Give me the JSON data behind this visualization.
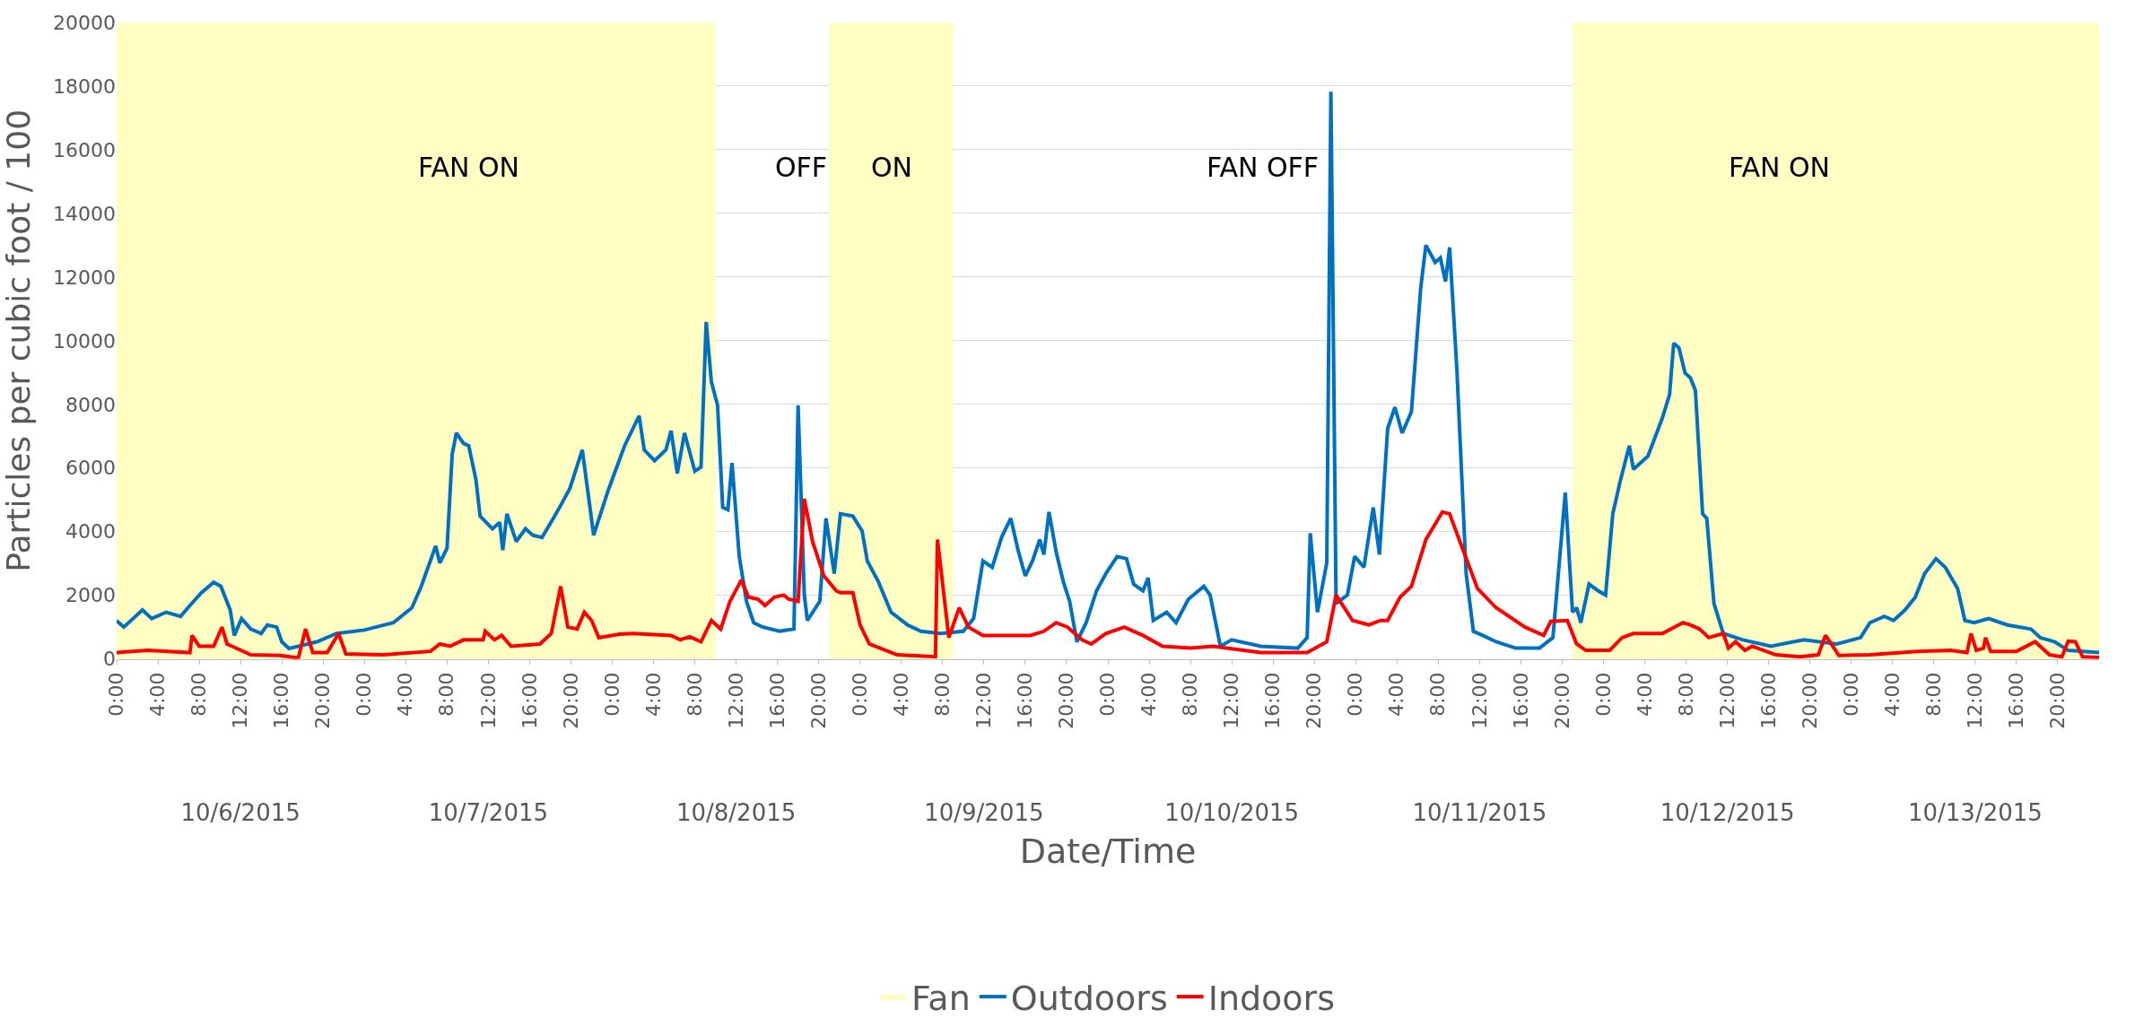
{
  "chart_data": {
    "type": "line",
    "xlabel": "Date/Time",
    "ylabel": "Particles per cubic foot / 100",
    "xlim": [
      "2015-10-06T00:00",
      "2015-10-14T00:00"
    ],
    "xticks": [
      {
        "value": "2015-10-06T00:00",
        "label": "0:00"
      },
      {
        "value": "2015-10-06T04:00",
        "label": "4:00"
      },
      {
        "value": "2015-10-06T08:00",
        "label": "8:00"
      },
      {
        "value": "2015-10-06T12:00",
        "label": "12:00"
      },
      {
        "value": "2015-10-06T16:00",
        "label": "16:00"
      },
      {
        "value": "2015-10-06T20:00",
        "label": "20:00"
      },
      {
        "value": "2015-10-07T00:00",
        "label": "0:00"
      },
      {
        "value": "2015-10-07T04:00",
        "label": "4:00"
      },
      {
        "value": "2015-10-07T08:00",
        "label": "8:00"
      },
      {
        "value": "2015-10-07T12:00",
        "label": "12:00"
      },
      {
        "value": "2015-10-07T16:00",
        "label": "16:00"
      },
      {
        "value": "2015-10-07T20:00",
        "label": "20:00"
      },
      {
        "value": "2015-10-08T00:00",
        "label": "0:00"
      },
      {
        "value": "2015-10-08T04:00",
        "label": "4:00"
      },
      {
        "value": "2015-10-08T08:00",
        "label": "8:00"
      },
      {
        "value": "2015-10-08T12:00",
        "label": "12:00"
      },
      {
        "value": "2015-10-08T16:00",
        "label": "16:00"
      },
      {
        "value": "2015-10-08T20:00",
        "label": "20:00"
      },
      {
        "value": "2015-10-09T00:00",
        "label": "0:00"
      },
      {
        "value": "2015-10-09T04:00",
        "label": "4:00"
      },
      {
        "value": "2015-10-09T08:00",
        "label": "8:00"
      },
      {
        "value": "2015-10-09T12:00",
        "label": "12:00"
      },
      {
        "value": "2015-10-09T16:00",
        "label": "16:00"
      },
      {
        "value": "2015-10-09T20:00",
        "label": "20:00"
      },
      {
        "value": "2015-10-10T00:00",
        "label": "0:00"
      },
      {
        "value": "2015-10-10T04:00",
        "label": "4:00"
      },
      {
        "value": "2015-10-10T08:00",
        "label": "8:00"
      },
      {
        "value": "2015-10-10T12:00",
        "label": "12:00"
      },
      {
        "value": "2015-10-10T16:00",
        "label": "16:00"
      },
      {
        "value": "2015-10-10T20:00",
        "label": "20:00"
      },
      {
        "value": "2015-10-11T00:00",
        "label": "0:00"
      },
      {
        "value": "2015-10-11T04:00",
        "label": "4:00"
      },
      {
        "value": "2015-10-11T08:00",
        "label": "8:00"
      },
      {
        "value": "2015-10-11T12:00",
        "label": "12:00"
      },
      {
        "value": "2015-10-11T16:00",
        "label": "16:00"
      },
      {
        "value": "2015-10-11T20:00",
        "label": "20:00"
      },
      {
        "value": "2015-10-12T00:00",
        "label": "0:00"
      },
      {
        "value": "2015-10-12T04:00",
        "label": "4:00"
      },
      {
        "value": "2015-10-12T08:00",
        "label": "8:00"
      },
      {
        "value": "2015-10-12T12:00",
        "label": "12:00"
      },
      {
        "value": "2015-10-12T16:00",
        "label": "16:00"
      },
      {
        "value": "2015-10-12T20:00",
        "label": "20:00"
      },
      {
        "value": "2015-10-13T00:00",
        "label": "0:00"
      },
      {
        "value": "2015-10-13T04:00",
        "label": "4:00"
      },
      {
        "value": "2015-10-13T08:00",
        "label": "8:00"
      },
      {
        "value": "2015-10-13T12:00",
        "label": "12:00"
      },
      {
        "value": "2015-10-13T16:00",
        "label": "16:00"
      },
      {
        "value": "2015-10-13T20:00",
        "label": "20:00"
      }
    ],
    "x2lim": [
      "2015-10-06T00:00",
      "2015-10-14T00:00"
    ],
    "x2ticks": [
      {
        "value": "2015-10-06T12:00",
        "label": "10/6/2015"
      },
      {
        "value": "2015-10-07T12:00",
        "label": "10/7/2015"
      },
      {
        "value": "2015-10-08T12:00",
        "label": "10/8/2015"
      },
      {
        "value": "2015-10-09T12:00",
        "label": "10/9/2015"
      },
      {
        "value": "2015-10-10T12:00",
        "label": "10/10/2015"
      },
      {
        "value": "2015-10-11T12:00",
        "label": "10/11/2015"
      },
      {
        "value": "2015-10-12T12:00",
        "label": "10/12/2015"
      },
      {
        "value": "2015-10-13T12:00",
        "label": "10/13/2015"
      }
    ],
    "ylim": [
      0,
      20000
    ],
    "yticks": [
      0,
      2000,
      4000,
      6000,
      8000,
      10000,
      12000,
      14000,
      16000,
      18000,
      20000
    ],
    "grid": "y",
    "legend": "bottom",
    "annotations": [
      "FAN ON",
      "OFF",
      "ON",
      "FAN OFF",
      "FAN ON"
    ],
    "series": [
      {
        "name": "Fan",
        "type": "area",
        "color": "#ffffc4",
        "x": [
          "2015-10-06T00:00",
          "2015-10-08T10:00",
          "2015-10-08T10:00",
          "2015-10-08T21:00",
          "2015-10-08T21:00",
          "2015-10-09T09:00",
          "2015-10-09T09:00",
          "2015-10-11T21:00",
          "2015-10-11T21:00",
          "2015-10-14T00:00"
        ],
        "values": [
          20000,
          20000,
          0,
          0,
          20000,
          20000,
          0,
          0,
          20000,
          20000
        ]
      },
      {
        "name": "Outdoors",
        "color": "#0070c0",
        "x": [
          "2015-10-06T00:00",
          "2015-10-06T00:42",
          "2015-10-06T02:30",
          "2015-10-06T03:24",
          "2015-10-06T04:48",
          "2015-10-06T06:12",
          "2015-10-06T07:06",
          "2015-10-06T08:12",
          "2015-10-06T09:24",
          "2015-10-06T10:06",
          "2015-10-06T11:00",
          "2015-10-06T11:24",
          "2015-10-06T12:06",
          "2015-10-06T13:00",
          "2015-10-06T14:00",
          "2015-10-06T14:36",
          "2015-10-06T15:30",
          "2015-10-06T16:00",
          "2015-10-06T16:42",
          "2015-10-06T17:36",
          "2015-10-06T19:24",
          "2015-10-06T21:18",
          "2015-10-07T00:00",
          "2015-10-07T02:48",
          "2015-10-07T04:36",
          "2015-10-07T05:30",
          "2015-10-07T06:54",
          "2015-10-07T07:18",
          "2015-10-07T08:00",
          "2015-10-07T08:30",
          "2015-10-07T08:54",
          "2015-10-07T09:36",
          "2015-10-07T10:06",
          "2015-10-07T10:48",
          "2015-10-07T11:12",
          "2015-10-07T12:24",
          "2015-10-07T13:06",
          "2015-10-07T13:24",
          "2015-10-07T13:48",
          "2015-10-07T14:42",
          "2015-10-07T15:36",
          "2015-10-07T16:18",
          "2015-10-07T17:12",
          "2015-10-07T18:18",
          "2015-10-07T19:00",
          "2015-10-07T19:54",
          "2015-10-07T21:06",
          "2015-10-07T22:12",
          "2015-10-07T23:36",
          "2015-10-08T01:12",
          "2015-10-08T02:36",
          "2015-10-08T03:06",
          "2015-10-08T04:06",
          "2015-10-08T05:12",
          "2015-10-08T05:42",
          "2015-10-08T06:18",
          "2015-10-08T07:00",
          "2015-10-08T08:00",
          "2015-10-08T08:36",
          "2015-10-08T09:06",
          "2015-10-08T09:36",
          "2015-10-08T10:12",
          "2015-10-08T10:42",
          "2015-10-08T11:12",
          "2015-10-08T11:36",
          "2015-10-08T12:18",
          "2015-10-08T13:00",
          "2015-10-08T13:42",
          "2015-10-08T14:36",
          "2015-10-08T16:12",
          "2015-10-08T17:36",
          "2015-10-08T18:00",
          "2015-10-08T18:36",
          "2015-10-08T18:54",
          "2015-10-08T20:06",
          "2015-10-08T20:42",
          "2015-10-08T21:30",
          "2015-10-08T22:06",
          "2015-10-08T23:18",
          "2015-10-09T00:12",
          "2015-10-09T00:42",
          "2015-10-09T01:48",
          "2015-10-09T03:00",
          "2015-10-09T04:36",
          "2015-10-09T05:54",
          "2015-10-09T07:48",
          "2015-10-09T10:00",
          "2015-10-09T11:00",
          "2015-10-09T11:54",
          "2015-10-09T12:48",
          "2015-10-09T13:42",
          "2015-10-09T14:36",
          "2015-10-09T15:18",
          "2015-10-09T16:00",
          "2015-10-09T16:42",
          "2015-10-09T17:24",
          "2015-10-09T17:48",
          "2015-10-09T18:18",
          "2015-10-09T19:00",
          "2015-10-09T19:42",
          "2015-10-09T20:18",
          "2015-10-09T21:00",
          "2015-10-09T21:54",
          "2015-10-09T22:54",
          "2015-10-09T23:48",
          "2015-10-10T00:54",
          "2015-10-10T01:48",
          "2015-10-10T02:30",
          "2015-10-10T03:24",
          "2015-10-10T03:54",
          "2015-10-10T04:24",
          "2015-10-10T05:42",
          "2015-10-10T06:36",
          "2015-10-10T07:48",
          "2015-10-10T09:18",
          "2015-10-10T09:54",
          "2015-10-10T10:54",
          "2015-10-10T12:00",
          "2015-10-10T14:48",
          "2015-10-10T18:24",
          "2015-10-10T19:18",
          "2015-10-10T19:36",
          "2015-10-10T20:18",
          "2015-10-10T21:12",
          "2015-10-10T21:36",
          "2015-10-10T22:06",
          "2015-10-10T23:12",
          "2015-10-10T23:54",
          "2015-10-11T00:48",
          "2015-10-11T01:42",
          "2015-10-11T02:18",
          "2015-10-11T03:06",
          "2015-10-11T03:48",
          "2015-10-11T04:30",
          "2015-10-11T05:24",
          "2015-10-11T06:18",
          "2015-10-11T06:48",
          "2015-10-11T07:42",
          "2015-10-11T08:12",
          "2015-10-11T08:42",
          "2015-10-11T09:06",
          "2015-10-11T09:48",
          "2015-10-11T10:42",
          "2015-10-11T11:24",
          "2015-10-11T12:18",
          "2015-10-11T13:36",
          "2015-10-11T15:30",
          "2015-10-11T17:48",
          "2015-10-11T19:06",
          "2015-10-11T20:18",
          "2015-10-11T21:00",
          "2015-10-11T21:24",
          "2015-10-11T21:48",
          "2015-10-11T22:36",
          "2015-10-11T23:30",
          "2015-10-12T00:12",
          "2015-10-12T00:54",
          "2015-10-12T01:36",
          "2015-10-12T02:30",
          "2015-10-12T02:54",
          "2015-10-12T04:18",
          "2015-10-12T05:42",
          "2015-10-12T06:24",
          "2015-10-12T06:48",
          "2015-10-12T07:18",
          "2015-10-12T07:54",
          "2015-10-12T08:24",
          "2015-10-12T08:54",
          "2015-10-12T09:36",
          "2015-10-12T10:00",
          "2015-10-12T10:42",
          "2015-10-12T11:36",
          "2015-10-12T13:30",
          "2015-10-12T16:12",
          "2015-10-12T19:24",
          "2015-10-12T22:36",
          "2015-10-13T00:54",
          "2015-10-13T01:48",
          "2015-10-13T03:12",
          "2015-10-13T04:06",
          "2015-10-13T05:12",
          "2015-10-13T06:12",
          "2015-10-13T07:06",
          "2015-10-13T08:12",
          "2015-10-13T09:06",
          "2015-10-13T10:18",
          "2015-10-13T11:00",
          "2015-10-13T11:54",
          "2015-10-13T13:18",
          "2015-10-13T15:06",
          "2015-10-13T17:24",
          "2015-10-13T18:18",
          "2015-10-13T19:42",
          "2015-10-13T21:00",
          "2015-10-14T00:00"
        ],
        "values": [
          1200,
          1000,
          1540,
          1270,
          1470,
          1340,
          1680,
          2080,
          2410,
          2280,
          1540,
          740,
          1270,
          940,
          800,
          1070,
          1000,
          540,
          330,
          400,
          540,
          800,
          910,
          1140,
          1610,
          2280,
          3550,
          3020,
          3480,
          6430,
          7100,
          6770,
          6700,
          5630,
          4490,
          4090,
          4290,
          3420,
          4560,
          3690,
          4090,
          3890,
          3820,
          4420,
          4820,
          5360,
          6570,
          3890,
          5290,
          6700,
          7640,
          6570,
          6230,
          6570,
          7170,
          5830,
          7100,
          5900,
          6030,
          10590,
          8710,
          7970,
          4760,
          4690,
          6160,
          3220,
          1810,
          1140,
          1000,
          870,
          940,
          7970,
          2010,
          1210,
          1810,
          4420,
          2680,
          4560,
          4490,
          4020,
          3080,
          2410,
          1470,
          1070,
          870,
          800,
          870,
          1270,
          3080,
          2880,
          3820,
          4420,
          3420,
          2610,
          3080,
          3750,
          3280,
          4620,
          3350,
          2410,
          1810,
          540,
          1140,
          2140,
          2680,
          3220,
          3150,
          2350,
          2140,
          2550,
          1210,
          1470,
          1140,
          1880,
          2280,
          2010,
          400,
          600,
          400,
          340,
          670,
          3950,
          1470,
          3020,
          17820,
          1740,
          2010,
          3220,
          2880,
          4760,
          3280,
          7240,
          7910,
          7100,
          7770,
          11660,
          13000,
          12460,
          12600,
          11860,
          12930,
          9110,
          2680,
          870,
          740,
          540,
          340,
          340,
          670,
          5230,
          1470,
          1610,
          1140,
          2350,
          2140,
          2010,
          4560,
          5560,
          6700,
          5960,
          6370,
          7570,
          8310,
          9920,
          9780,
          8980,
          8840,
          8440,
          4560,
          4420,
          1740,
          800,
          600,
          400,
          600,
          470,
          670,
          1140,
          1340,
          1210,
          1540,
          1940,
          2680,
          3150,
          2880,
          2210,
          1210,
          1140,
          1270,
          1070,
          940,
          670,
          540,
          270,
          200
        ]
      },
      {
        "name": "Indoors",
        "color": "#ff0000",
        "x": [
          "2015-10-06T00:00",
          "2015-10-06T03:00",
          "2015-10-06T07:06",
          "2015-10-06T07:18",
          "2015-10-06T08:00",
          "2015-10-06T09:24",
          "2015-10-06T10:12",
          "2015-10-06T10:42",
          "2015-10-06T13:00",
          "2015-10-06T15:48",
          "2015-10-06T17:36",
          "2015-10-06T18:18",
          "2015-10-06T19:00",
          "2015-10-06T20:24",
          "2015-10-06T21:30",
          "2015-10-06T22:12",
          "2015-10-07T01:48",
          "2015-10-07T06:24",
          "2015-10-07T07:18",
          "2015-10-07T08:18",
          "2015-10-07T09:36",
          "2015-10-07T11:30",
          "2015-10-07T11:42",
          "2015-10-07T12:36",
          "2015-10-07T13:18",
          "2015-10-07T14:12",
          "2015-10-07T17:00",
          "2015-10-07T18:06",
          "2015-10-07T19:00",
          "2015-10-07T19:42",
          "2015-10-07T20:36",
          "2015-10-07T21:18",
          "2015-10-07T22:00",
          "2015-10-07T22:42",
          "2015-10-08T00:42",
          "2015-10-08T02:00",
          "2015-10-08T05:42",
          "2015-10-08T06:36",
          "2015-10-08T07:30",
          "2015-10-08T08:36",
          "2015-10-08T09:36",
          "2015-10-08T10:30",
          "2015-10-08T11:24",
          "2015-10-08T12:30",
          "2015-10-08T13:12",
          "2015-10-08T14:06",
          "2015-10-08T14:48",
          "2015-10-08T15:42",
          "2015-10-08T16:36",
          "2015-10-08T17:06",
          "2015-10-08T18:00",
          "2015-10-08T18:36",
          "2015-10-08T19:24",
          "2015-10-08T20:30",
          "2015-10-08T21:42",
          "2015-10-08T22:06",
          "2015-10-08T23:18",
          "2015-10-09T00:00",
          "2015-10-09T00:54",
          "2015-10-09T03:36",
          "2015-10-09T07:18",
          "2015-10-09T07:30",
          "2015-10-09T08:36",
          "2015-10-09T09:36",
          "2015-10-09T10:30",
          "2015-10-09T11:54",
          "2015-10-09T14:36",
          "2015-10-09T16:30",
          "2015-10-09T17:48",
          "2015-10-09T19:00",
          "2015-10-09T20:06",
          "2015-10-09T21:30",
          "2015-10-09T22:24",
          "2015-10-09T23:48",
          "2015-10-10T01:36",
          "2015-10-10T03:24",
          "2015-10-10T05:18",
          "2015-10-10T08:00",
          "2015-10-10T10:12",
          "2015-10-10T14:48",
          "2015-10-10T19:18",
          "2015-10-10T21:12",
          "2015-10-10T22:06",
          "2015-10-10T23:42",
          "2015-10-11T01:18",
          "2015-10-11T02:24",
          "2015-10-11T03:06",
          "2015-10-11T04:18",
          "2015-10-11T05:24",
          "2015-10-11T06:48",
          "2015-10-11T08:24",
          "2015-10-11T09:06",
          "2015-10-11T10:24",
          "2015-10-11T11:48",
          "2015-10-11T13:36",
          "2015-10-11T16:24",
          "2015-10-11T18:12",
          "2015-10-11T18:54",
          "2015-10-11T20:30",
          "2015-10-11T21:24",
          "2015-10-11T22:18",
          "2015-10-12T00:36",
          "2015-10-12T01:48",
          "2015-10-12T02:54",
          "2015-10-12T05:42",
          "2015-10-12T07:42",
          "2015-10-12T08:24",
          "2015-10-12T09:18",
          "2015-10-12T10:12",
          "2015-10-12T11:36",
          "2015-10-12T12:06",
          "2015-10-12T12:48",
          "2015-10-12T13:42",
          "2015-10-12T14:24",
          "2015-10-12T16:42",
          "2015-10-12T19:00",
          "2015-10-12T20:48",
          "2015-10-12T21:30",
          "2015-10-12T22:12",
          "2015-10-12T22:48",
          "2015-10-13T01:48",
          "2015-10-13T06:24",
          "2015-10-13T09:36",
          "2015-10-13T11:12",
          "2015-10-13T11:36",
          "2015-10-13T12:06",
          "2015-10-13T12:48",
          "2015-10-13T13:00",
          "2015-10-13T13:30",
          "2015-10-13T16:00",
          "2015-10-13T17:48",
          "2015-10-13T19:12",
          "2015-10-13T20:24",
          "2015-10-13T21:00",
          "2015-10-13T21:42",
          "2015-10-13T22:24",
          "2015-10-14T00:00"
        ],
        "values": [
          200,
          270,
          200,
          740,
          400,
          400,
          1000,
          470,
          130,
          110,
          30,
          940,
          200,
          200,
          800,
          160,
          130,
          240,
          470,
          400,
          600,
          600,
          870,
          600,
          740,
          400,
          470,
          800,
          2280,
          1000,
          940,
          1470,
          1210,
          670,
          780,
          800,
          740,
          600,
          700,
          540,
          1210,
          940,
          1810,
          2480,
          1940,
          1880,
          1680,
          1940,
          2010,
          1880,
          1810,
          5030,
          3690,
          2610,
          2140,
          2080,
          2080,
          1070,
          470,
          130,
          70,
          3750,
          670,
          1610,
          1000,
          740,
          740,
          740,
          870,
          1140,
          1000,
          600,
          470,
          800,
          1000,
          740,
          400,
          340,
          400,
          200,
          200,
          540,
          2010,
          1210,
          1070,
          1210,
          1210,
          1940,
          2280,
          3750,
          4620,
          4560,
          3420,
          2210,
          1610,
          1000,
          740,
          1180,
          1210,
          470,
          270,
          270,
          670,
          800,
          800,
          1140,
          1070,
          940,
          670,
          800,
          340,
          540,
          270,
          400,
          130,
          70,
          130,
          740,
          400,
          110,
          130,
          240,
          270,
          200,
          800,
          270,
          340,
          670,
          240,
          240,
          540,
          130,
          70,
          560,
          540,
          70,
          50
        ]
      }
    ]
  }
}
